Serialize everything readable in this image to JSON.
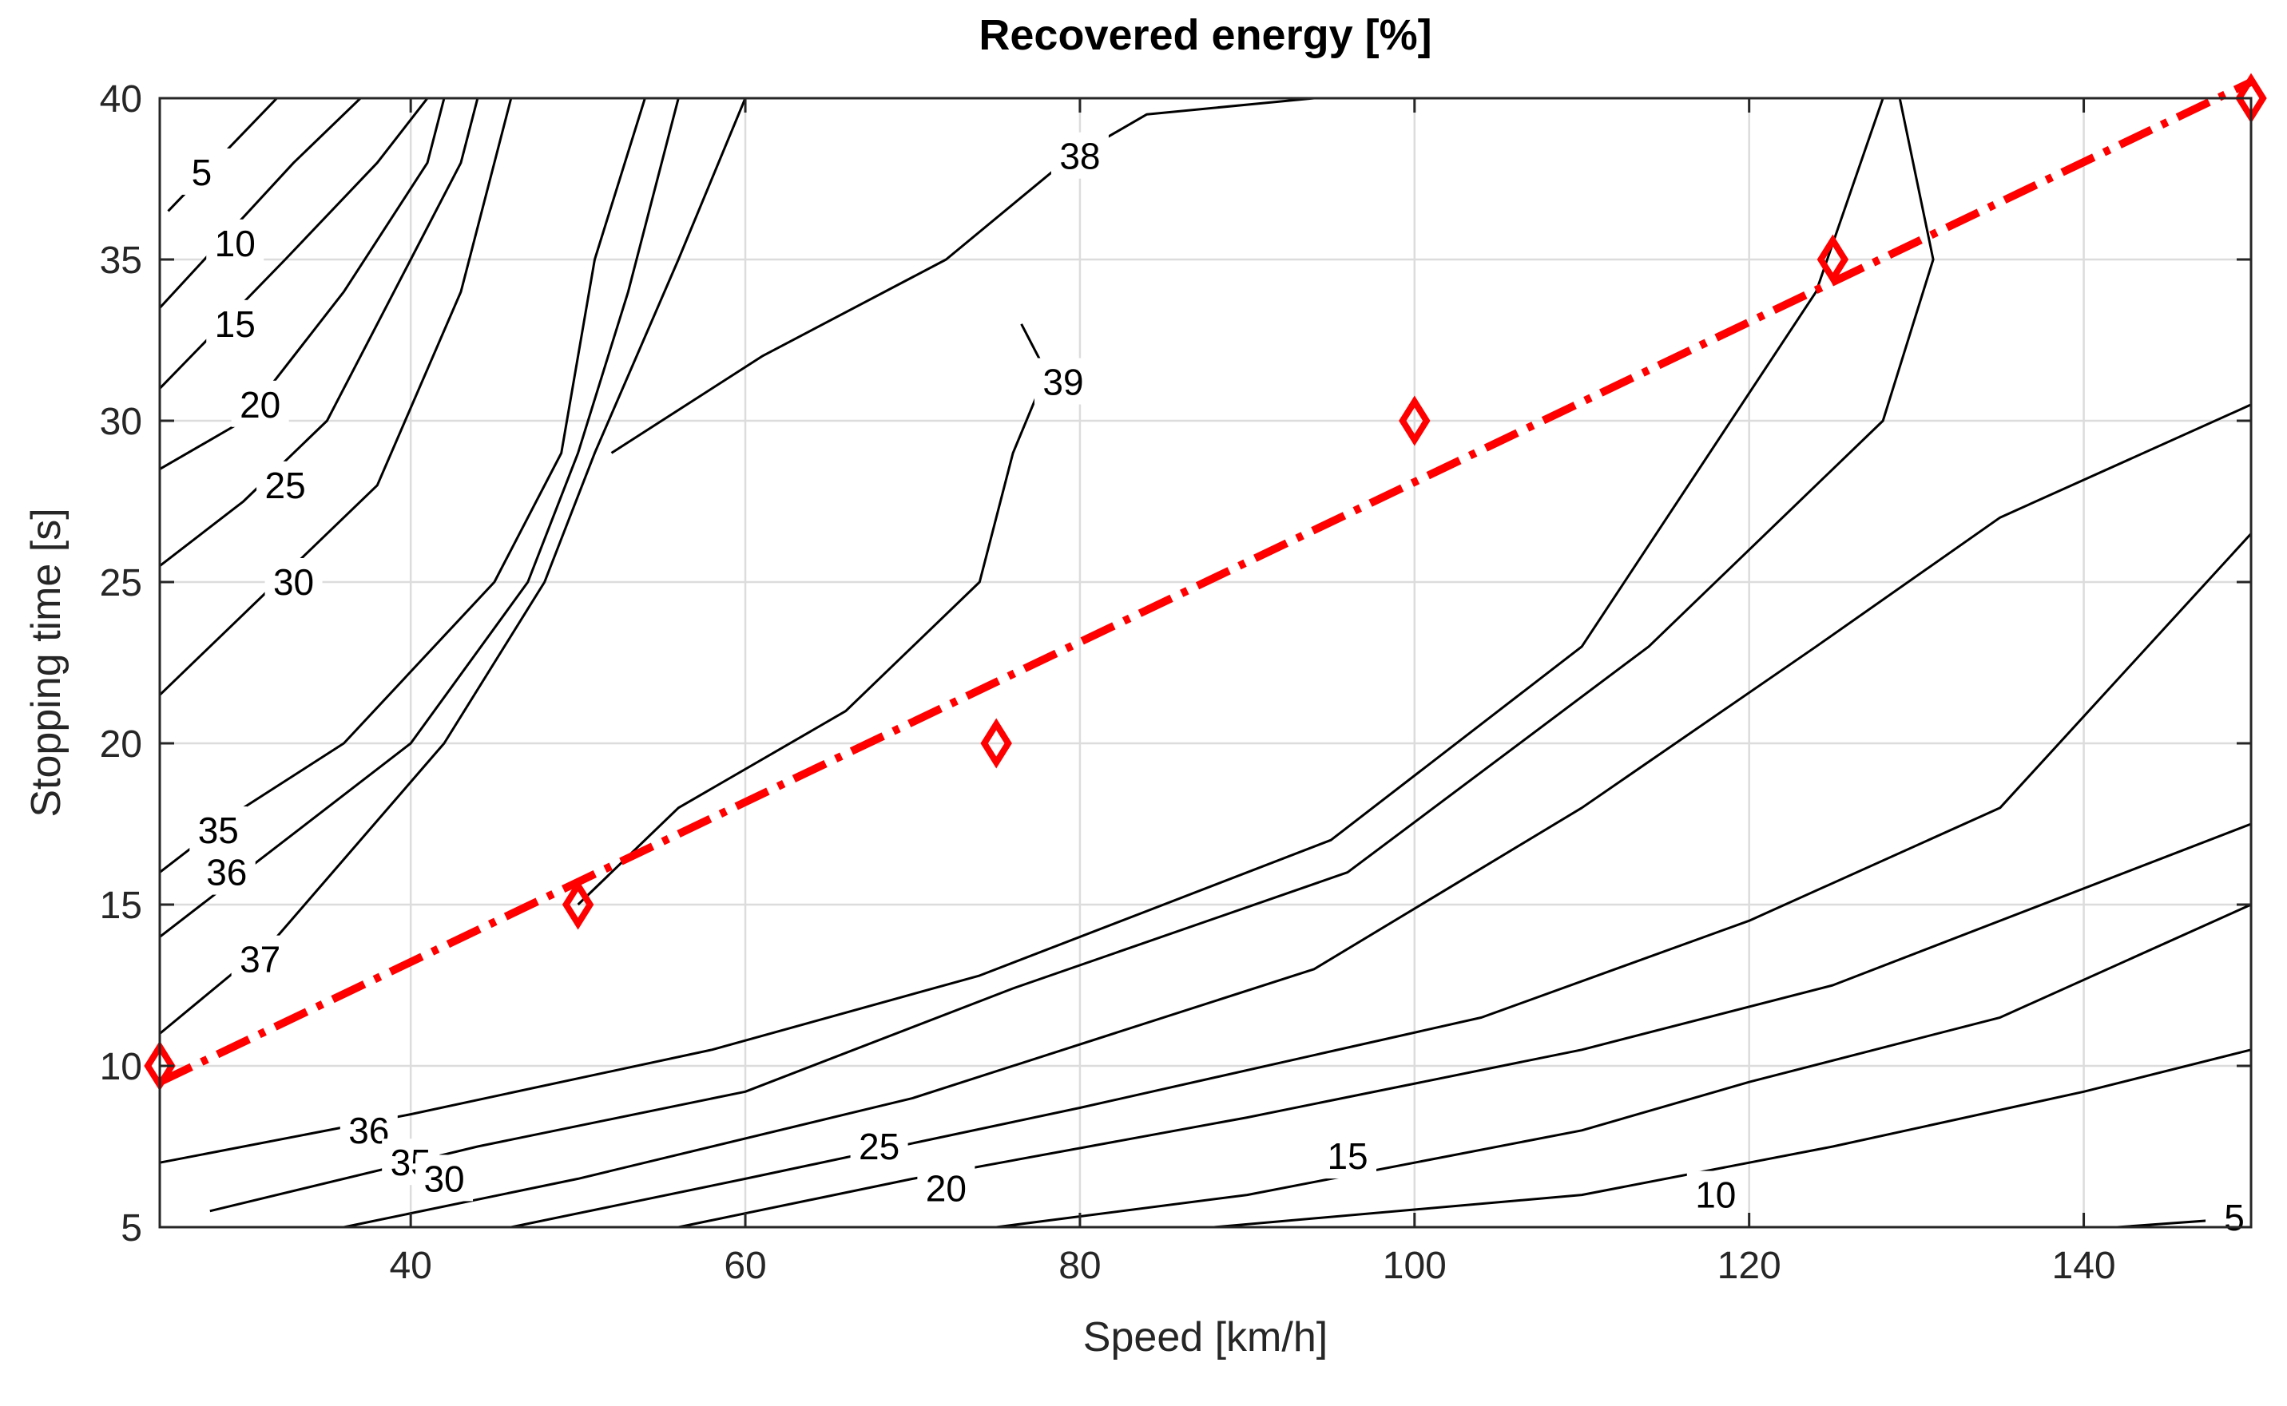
{
  "chart_data": {
    "type": "contour",
    "title": "Recovered energy [%]",
    "xlabel": "Speed [km/h]",
    "ylabel": "Stopping time [s]",
    "xlim": [
      25,
      150
    ],
    "ylim": [
      5,
      40
    ],
    "xticks": [
      40,
      60,
      80,
      100,
      120,
      140
    ],
    "yticks": [
      5,
      10,
      15,
      20,
      25,
      30,
      35,
      40
    ],
    "grid": true,
    "contours": [
      {
        "level": "5",
        "points": [
          [
            25.5,
            36.5
          ],
          [
            32,
            40
          ]
        ],
        "label": {
          "x": 27.5,
          "y": 37.7
        }
      },
      {
        "level": "10",
        "points": [
          [
            25,
            33.5
          ],
          [
            33,
            38
          ],
          [
            37,
            40
          ]
        ],
        "label": {
          "x": 29.5,
          "y": 35.5
        }
      },
      {
        "level": "15",
        "points": [
          [
            25,
            31
          ],
          [
            32.5,
            35
          ],
          [
            38,
            38
          ],
          [
            41,
            40
          ]
        ],
        "label": {
          "x": 29.5,
          "y": 33
        }
      },
      {
        "level": "20",
        "points": [
          [
            25,
            28.5
          ],
          [
            30,
            30
          ],
          [
            36,
            34
          ],
          [
            41,
            38
          ],
          [
            42,
            40
          ]
        ],
        "label": {
          "x": 31,
          "y": 30.5
        }
      },
      {
        "level": "25",
        "points": [
          [
            25,
            25.5
          ],
          [
            30,
            27.5
          ],
          [
            35,
            30
          ],
          [
            40,
            35
          ],
          [
            43,
            38
          ],
          [
            44,
            40
          ]
        ],
        "label": {
          "x": 32.5,
          "y": 28
        }
      },
      {
        "level": "30",
        "points": [
          [
            25,
            21.5
          ],
          [
            30,
            24
          ],
          [
            38,
            28
          ],
          [
            43,
            34
          ],
          [
            45,
            38
          ],
          [
            46,
            40
          ]
        ],
        "label": {
          "x": 33,
          "y": 25
        }
      },
      {
        "level": "35",
        "points": [
          [
            25,
            16
          ],
          [
            30,
            18
          ],
          [
            36,
            20
          ],
          [
            45,
            25
          ],
          [
            49,
            29
          ],
          [
            51,
            35
          ],
          [
            54,
            40
          ]
        ],
        "label": {
          "x": 28.5,
          "y": 17.3
        }
      },
      {
        "level": "36",
        "points": [
          [
            25,
            14
          ],
          [
            30,
            16
          ],
          [
            40,
            20
          ],
          [
            47,
            25
          ],
          [
            50,
            29
          ],
          [
            53,
            34
          ],
          [
            56,
            40
          ]
        ],
        "label": {
          "x": 29,
          "y": 16
        }
      },
      {
        "level": "37",
        "points": [
          [
            25,
            11
          ],
          [
            32,
            14
          ],
          [
            42,
            20
          ],
          [
            48,
            25
          ],
          [
            51,
            29
          ],
          [
            56,
            35
          ],
          [
            60,
            40
          ]
        ],
        "label": {
          "x": 31,
          "y": 13.3
        }
      },
      {
        "level": "38",
        "points": [
          [
            52,
            29
          ],
          [
            61,
            32
          ],
          [
            72,
            35
          ],
          [
            79,
            38
          ],
          [
            84,
            39.5
          ],
          [
            94,
            40
          ]
        ],
        "label": {
          "x": 80,
          "y": 38.2
        }
      },
      {
        "level": "39",
        "points": [
          [
            50,
            15
          ],
          [
            56,
            18
          ],
          [
            66,
            21
          ],
          [
            74,
            25
          ],
          [
            76,
            29
          ],
          [
            78,
            31.5
          ],
          [
            76.5,
            33
          ]
        ],
        "label": {
          "x": 79,
          "y": 31.2
        }
      },
      {
        "level": "36",
        "points": [
          [
            25,
            7
          ],
          [
            40,
            8.5
          ],
          [
            58,
            10.5
          ],
          [
            74,
            12.8
          ],
          [
            95,
            17
          ],
          [
            110,
            23
          ],
          [
            124,
            34
          ],
          [
            128,
            40
          ]
        ],
        "label": {
          "x": 37.5,
          "y": 8
        }
      },
      {
        "level": "35",
        "points": [
          [
            28,
            5.5
          ],
          [
            44,
            7.5
          ],
          [
            60,
            9.2
          ],
          [
            76,
            12.4
          ],
          [
            96,
            16
          ],
          [
            114,
            23
          ],
          [
            128,
            30
          ],
          [
            131,
            35
          ],
          [
            129,
            40
          ]
        ],
        "label": {
          "x": 40,
          "y": 7
        }
      },
      {
        "level": "30",
        "points": [
          [
            36,
            5
          ],
          [
            50,
            6.5
          ],
          [
            70,
            9
          ],
          [
            94,
            13
          ],
          [
            110,
            18
          ],
          [
            124,
            23
          ],
          [
            135,
            27
          ],
          [
            150,
            30.5
          ]
        ],
        "label": {
          "x": 42,
          "y": 6.5
        }
      },
      {
        "level": "25",
        "points": [
          [
            46,
            5
          ],
          [
            60,
            6.5
          ],
          [
            80,
            8.7
          ],
          [
            104,
            11.5
          ],
          [
            120,
            14.5
          ],
          [
            135,
            18
          ],
          [
            150,
            26.5
          ]
        ],
        "label": {
          "x": 68,
          "y": 7.5
        }
      },
      {
        "level": "20",
        "points": [
          [
            56,
            5
          ],
          [
            70,
            6.5
          ],
          [
            90,
            8.4
          ],
          [
            110,
            10.5
          ],
          [
            125,
            12.5
          ],
          [
            150,
            17.5
          ]
        ],
        "label": {
          "x": 72,
          "y": 6.2
        }
      },
      {
        "level": "15",
        "points": [
          [
            75,
            5
          ],
          [
            90,
            6
          ],
          [
            110,
            8
          ],
          [
            120,
            9.5
          ],
          [
            135,
            11.5
          ],
          [
            150,
            15
          ]
        ],
        "label": {
          "x": 96,
          "y": 7.2
        }
      },
      {
        "level": "10",
        "points": [
          [
            88,
            5
          ],
          [
            110,
            6
          ],
          [
            125,
            7.5
          ],
          [
            140,
            9.2
          ],
          [
            150,
            10.5
          ]
        ],
        "label": {
          "x": 118,
          "y": 6
        }
      },
      {
        "level": "5",
        "points": [
          [
            142,
            5
          ],
          [
            150,
            5.3
          ]
        ],
        "label": {
          "x": 149,
          "y": 5.3
        }
      }
    ],
    "markers": [
      {
        "x": 25,
        "y": 10
      },
      {
        "x": 50,
        "y": 15
      },
      {
        "x": 75,
        "y": 20
      },
      {
        "x": 100,
        "y": 30
      },
      {
        "x": 125,
        "y": 35
      },
      {
        "x": 150,
        "y": 40
      }
    ],
    "trend_line": {
      "x": [
        25,
        150
      ],
      "y": [
        9.5,
        40.5
      ],
      "style": "dash-dot",
      "color": "#ff0000"
    },
    "colors": {
      "contour": "#000000",
      "marker": "#ff0000",
      "grid": "#dcdcdc"
    }
  }
}
